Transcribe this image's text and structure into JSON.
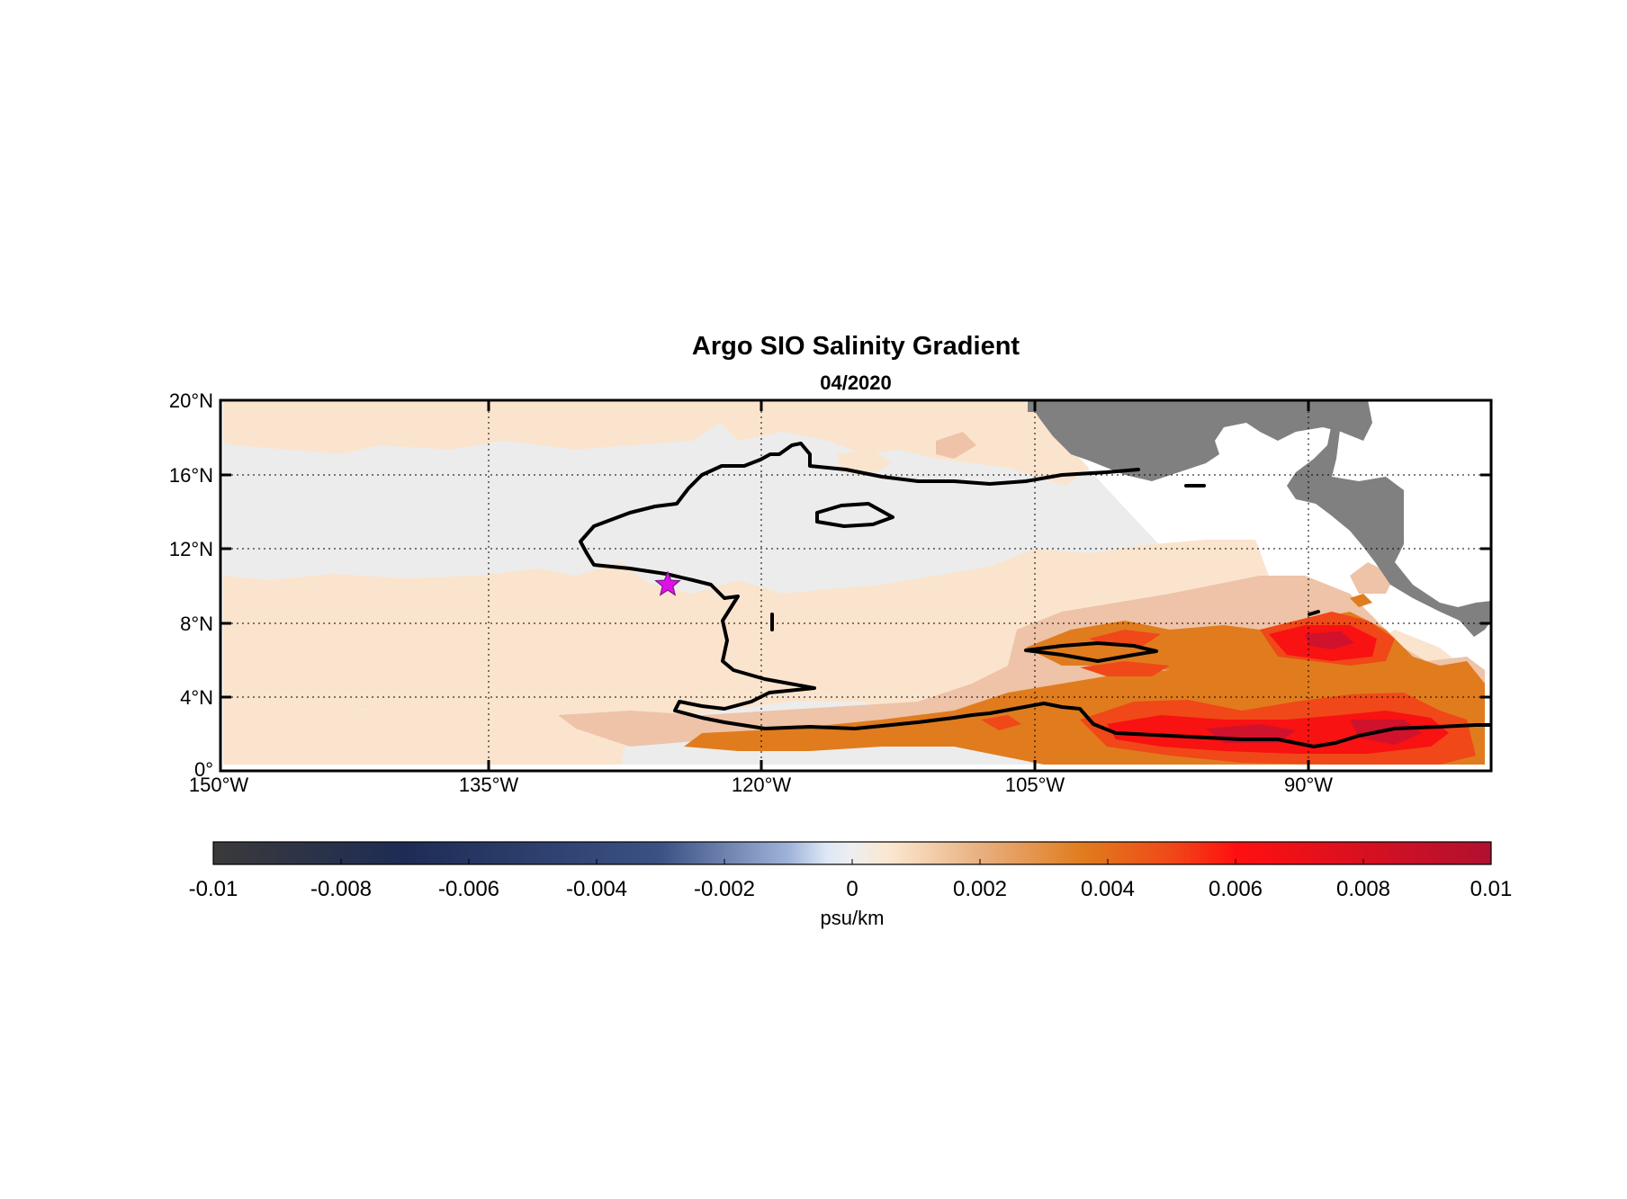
{
  "chart_data": {
    "type": "heatmap",
    "title": "Argo SIO Salinity Gradient",
    "subtitle": "04/2020",
    "x_ticks": [
      "150°W",
      "135°W",
      "120°W",
      "105°W",
      "90°W"
    ],
    "y_ticks": [
      "0°",
      "4°N",
      "8°N",
      "12°N",
      "16°N",
      "20°N"
    ],
    "xlim": [
      -150,
      -80
    ],
    "ylim": [
      0,
      20
    ],
    "grid": true,
    "marker": {
      "label": "star",
      "lon": -125.5,
      "lat": 10,
      "color": "#e010e8"
    },
    "colorbar": {
      "label": "psu/km",
      "ticks": [
        "-0.01",
        "-0.008",
        "-0.006",
        "-0.004",
        "-0.002",
        "0",
        "0.002",
        "0.004",
        "0.006",
        "0.008",
        "0.01"
      ],
      "range": [
        -0.01,
        0.01
      ]
    },
    "colors": {
      "land": "#808080",
      "neutral": "#ececec",
      "level_1": "#fbe4cd",
      "level_2": "#eec3a7",
      "level_3": "#e07c1e",
      "level_4": "#f04818",
      "level_5": "#f81212",
      "level_6": "#d0122c",
      "contour": "#000000"
    }
  }
}
